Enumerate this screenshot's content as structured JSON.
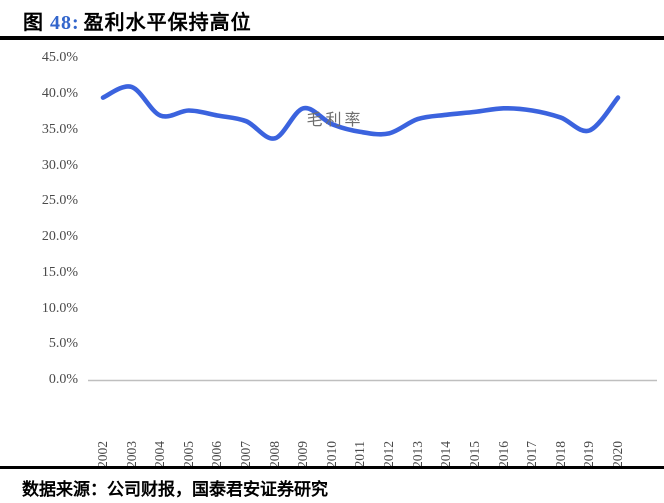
{
  "header": {
    "title_prefix": "图",
    "title_number": "48:",
    "title_text": "盈利水平保持高位",
    "number_color": "#3366cc"
  },
  "chart_data": {
    "type": "line",
    "title": "图 48: 盈利水平保持高位",
    "series_label": "毛利率",
    "categories": [
      "2002",
      "2003",
      "2004",
      "2005",
      "2006",
      "2007",
      "2008",
      "2009",
      "2010",
      "2011",
      "2012",
      "2013",
      "2014",
      "2015",
      "2016",
      "2017",
      "2018",
      "2019",
      "2020"
    ],
    "values": [
      39.5,
      41.0,
      37.0,
      37.7,
      37.0,
      36.2,
      33.8,
      38.0,
      35.8,
      34.7,
      34.5,
      36.5,
      37.1,
      37.5,
      38.0,
      37.7,
      36.7,
      34.9,
      39.5
    ],
    "unit": "%",
    "y_ticks": [
      "45.0%",
      "40.0%",
      "35.0%",
      "30.0%",
      "25.0%",
      "20.0%",
      "15.0%",
      "10.0%",
      "5.0%",
      "0.0%"
    ],
    "ylim": [
      0,
      45
    ],
    "grid": false,
    "legend_position": "top-center-inline-label",
    "line_color": "#3b63de",
    "axis_color": "#bfbfbf",
    "tick_color": "#4a4a4a"
  },
  "footer": {
    "source_text": "数据来源：公司财报，国泰君安证券研究"
  }
}
